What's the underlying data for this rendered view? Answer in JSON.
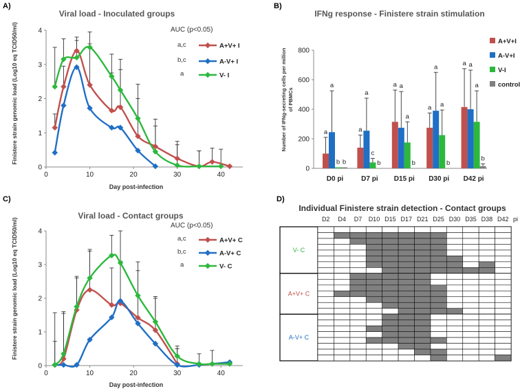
{
  "panels": {
    "A": {
      "letter": "A)",
      "title": "Viral load - Inoculated groups",
      "ylabel": "Finistere strain genomic load (Log10 eq TCID50/ml)",
      "xlabel": "Day post-infection",
      "auc_label": "AUC (p<0.05)",
      "auc_letters": [
        "a,c",
        "b,c",
        "a"
      ]
    },
    "B": {
      "letter": "B)",
      "title": "IFNg response - Finistere strain stimulation",
      "ylabel_line1": "Number of IFNg-secreting cells per million",
      "ylabel_line2": "of PBMCs"
    },
    "C": {
      "letter": "C)",
      "title": "Viral load - Contact groups",
      "ylabel": "Finistere strain genomic load (Log10 eq TCID50/ml)",
      "xlabel": "Day post-infection",
      "auc_label": "AUC (p<0.05)",
      "auc_letters": [
        "a,c",
        "b,c",
        "a"
      ]
    },
    "D": {
      "letter": "D)",
      "title": "Individual Finistere strain detection - Contact groups",
      "pi_suffix": "pi"
    }
  },
  "colors": {
    "red": "#c0504d",
    "blue": "#1f6fc5",
    "green": "#2db83d",
    "grey": "#7f7f7f",
    "cell": "#808080"
  },
  "chart_data": [
    {
      "type": "line",
      "title": "Viral load - Inoculated groups",
      "xlabel": "Day post-infection",
      "ylabel": "Finistere strain genomic load (Log10 eq TCID50/ml)",
      "xlim": [
        0,
        45
      ],
      "ylim": [
        0,
        4
      ],
      "xticks": [
        0,
        10,
        20,
        30,
        40
      ],
      "yticks": [
        0,
        1,
        2,
        3,
        4
      ],
      "series": [
        {
          "name": "A+V+ I",
          "color": "red",
          "x": [
            2,
            4,
            7,
            10,
            15,
            17,
            21,
            25,
            30,
            35,
            38,
            42
          ],
          "y": [
            1.15,
            2.35,
            3.4,
            2.4,
            1.65,
            1.75,
            0.9,
            0.6,
            0.25,
            0.02,
            0.15,
            0.02
          ],
          "err": [
            0.4,
            0.6,
            0.4,
            1.2,
            1.1,
            1.1,
            1.1,
            0.8,
            0.5,
            0.45,
            0.4,
            0
          ]
        },
        {
          "name": "A-V+ I",
          "color": "blue",
          "x": [
            2,
            4,
            7,
            10,
            15,
            17,
            21,
            25
          ],
          "y": [
            0.42,
            1.8,
            2.92,
            1.72,
            1.15,
            1.15,
            0.48,
            0.02
          ],
          "err": [
            0,
            0,
            0,
            0,
            0,
            0,
            0,
            0
          ]
        },
        {
          "name": "V- I",
          "color": "green",
          "x": [
            2,
            4,
            7,
            10,
            15,
            17,
            21,
            25,
            30,
            35,
            40
          ],
          "y": [
            2.35,
            3.15,
            3.2,
            3.5,
            2.65,
            2.25,
            1.42,
            0.45,
            0.05,
            0.02,
            0.02
          ],
          "err": [
            1.15,
            0.6,
            0.5,
            0.45,
            0.65,
            0.9,
            1.0,
            0.75,
            0.6,
            0.45,
            0.5
          ]
        }
      ]
    },
    {
      "type": "bar",
      "title": "IFNg response - Finistere strain stimulation",
      "ylabel": "Number of IFNg-secreting cells per million of PBMCs",
      "categories": [
        "D0 pi",
        "D7 pi",
        "D15 pi",
        "D30 pi",
        "D42 pi"
      ],
      "ylim": [
        0,
        800
      ],
      "yticks": [
        0,
        200,
        400,
        600,
        800
      ],
      "series": [
        {
          "name": "A+V+I",
          "color": "red",
          "values": [
            100,
            140,
            315,
            275,
            415
          ],
          "err": [
            110,
            85,
            215,
            100,
            260
          ],
          "letters": [
            "a",
            "a",
            "a",
            "a",
            "a"
          ]
        },
        {
          "name": "A-V+I",
          "color": "blue",
          "values": [
            245,
            255,
            275,
            390,
            400
          ],
          "err": [
            280,
            220,
            245,
            260,
            265
          ],
          "letters": [
            "a",
            "a",
            "a",
            "a",
            "a"
          ]
        },
        {
          "name": "V-I",
          "color": "green",
          "values": [
            5,
            40,
            175,
            225,
            315
          ],
          "err": [
            0,
            28,
            140,
            170,
            210
          ],
          "letters": [
            "b",
            "c",
            "a",
            "a",
            "a"
          ]
        },
        {
          "name": "control",
          "color": "grey",
          "values": [
            5,
            0,
            0,
            0,
            15
          ],
          "err": [
            0,
            0,
            0,
            0,
            15
          ],
          "letters": [
            "b",
            "b",
            "b",
            "b",
            "b"
          ]
        }
      ]
    },
    {
      "type": "line",
      "title": "Viral load - Contact groups",
      "xlabel": "Day post-infection",
      "ylabel": "Finistere strain genomic load (Log10 eq TCID50/ml)",
      "xlim": [
        0,
        45
      ],
      "ylim": [
        0,
        4
      ],
      "xticks": [
        0,
        10,
        20,
        30,
        40
      ],
      "yticks": [
        0,
        1,
        2,
        3,
        4
      ],
      "series": [
        {
          "name": "A+V+ C",
          "color": "red",
          "x": [
            2,
            4,
            7,
            10,
            15,
            17,
            21,
            25,
            30
          ],
          "y": [
            0.02,
            0.2,
            1.65,
            2.25,
            1.8,
            1.85,
            1.42,
            1.05,
            0.05
          ],
          "err": [
            1.55,
            1.4,
            1.0,
            1.15,
            1.1,
            1.25,
            1.4,
            0.95,
            0.45
          ]
        },
        {
          "name": "A-V+ C",
          "color": "blue",
          "x": [
            2,
            4,
            7,
            10,
            15,
            17,
            21,
            25,
            30,
            35,
            42
          ],
          "y": [
            0.02,
            0.02,
            0.02,
            0.77,
            1.43,
            1.92,
            1.25,
            0.65,
            0.02,
            0.02,
            0.1
          ],
          "err": [
            0,
            0,
            0,
            0,
            0,
            0,
            0,
            0,
            0,
            0,
            0
          ]
        },
        {
          "name": "V- C",
          "color": "green",
          "x": [
            2,
            4,
            7,
            10,
            15,
            17,
            21,
            25,
            30,
            35,
            38,
            42
          ],
          "y": [
            0.02,
            0.35,
            1.75,
            2.6,
            3.27,
            3.05,
            2.08,
            1.3,
            0.28,
            0.05,
            0.05,
            0.05
          ],
          "err": [
            0.7,
            1.2,
            0.85,
            0.85,
            0.6,
            0.95,
            1.0,
            0.75,
            0.3,
            0.3,
            0.4,
            0
          ]
        }
      ]
    },
    {
      "type": "heatmap",
      "title": "Individual Finistere strain detection - Contact groups",
      "columns": [
        "D2",
        "D4",
        "D7",
        "D10",
        "D15",
        "D17",
        "D21",
        "D25",
        "D30",
        "D35",
        "D38",
        "D42"
      ],
      "groups": [
        {
          "name": "V- C",
          "color": "green",
          "rows": [
            [
              0,
              0,
              0,
              0,
              0,
              0,
              0,
              0,
              0,
              0,
              0,
              0
            ],
            [
              0,
              1,
              1,
              1,
              1,
              1,
              1,
              1,
              0,
              0,
              0,
              0
            ],
            [
              0,
              0,
              1,
              1,
              1,
              1,
              1,
              1,
              0,
              0,
              0,
              0
            ],
            [
              0,
              0,
              0,
              1,
              1,
              1,
              1,
              1,
              0,
              0,
              0,
              0
            ],
            [
              0,
              0,
              0,
              1,
              1,
              1,
              1,
              1,
              0,
              0,
              0,
              0
            ],
            [
              0,
              0,
              0,
              1,
              1,
              1,
              1,
              1,
              1,
              0,
              0,
              0
            ],
            [
              0,
              0,
              0,
              1,
              1,
              1,
              1,
              1,
              1,
              0,
              1,
              0
            ],
            [
              0,
              0,
              0,
              0,
              1,
              1,
              1,
              1,
              1,
              1,
              1,
              0
            ]
          ]
        },
        {
          "name": "A+V+ C",
          "color": "red",
          "rows": [
            [
              0,
              0,
              1,
              1,
              1,
              1,
              1,
              0,
              0,
              0,
              0,
              0
            ],
            [
              0,
              0,
              1,
              1,
              1,
              1,
              1,
              0,
              0,
              0,
              0,
              0
            ],
            [
              0,
              0,
              1,
              1,
              1,
              1,
              1,
              1,
              0,
              0,
              0,
              0
            ],
            [
              0,
              1,
              1,
              1,
              1,
              1,
              1,
              1,
              0,
              0,
              0,
              0
            ],
            [
              0,
              0,
              0,
              1,
              1,
              1,
              1,
              1,
              0,
              0,
              0,
              0
            ],
            [
              0,
              0,
              0,
              0,
              1,
              1,
              1,
              1,
              0,
              0,
              0,
              0
            ],
            [
              0,
              0,
              0,
              0,
              0,
              1,
              1,
              1,
              1,
              0,
              0,
              0
            ]
          ]
        },
        {
          "name": "A-V+ C",
          "color": "blue",
          "rows": [
            [
              0,
              0,
              0,
              0,
              1,
              1,
              1,
              0,
              0,
              0,
              0,
              0
            ],
            [
              0,
              0,
              0,
              0,
              1,
              1,
              1,
              0,
              0,
              0,
              0,
              0
            ],
            [
              0,
              0,
              0,
              1,
              1,
              1,
              1,
              0,
              0,
              0,
              0,
              0
            ],
            [
              0,
              0,
              0,
              0,
              1,
              1,
              1,
              0,
              0,
              0,
              0,
              0
            ],
            [
              0,
              0,
              0,
              1,
              1,
              1,
              1,
              1,
              0,
              0,
              0,
              0
            ],
            [
              0,
              0,
              0,
              0,
              0,
              1,
              1,
              0,
              0,
              0,
              0,
              0
            ],
            [
              0,
              0,
              0,
              0,
              0,
              0,
              1,
              1,
              0,
              0,
              0,
              0
            ],
            [
              0,
              0,
              0,
              0,
              0,
              0,
              0,
              1,
              0,
              0,
              0,
              1
            ]
          ]
        }
      ]
    }
  ]
}
